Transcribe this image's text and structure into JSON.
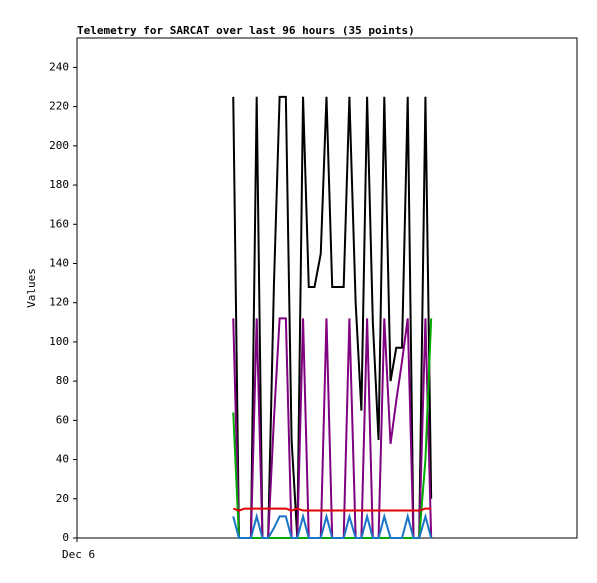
{
  "chart_data": {
    "type": "line",
    "title": "Telemetry for SARCAT over last 96 hours (35 points)",
    "y_label": "Values",
    "x": [
      30.0,
      31.1,
      32.2,
      33.4,
      34.5,
      35.6,
      36.7,
      37.8,
      38.9,
      40.1,
      41.2,
      42.3,
      43.4,
      44.5,
      45.6,
      46.8,
      47.9,
      49.0,
      50.1,
      51.2,
      52.3,
      53.5,
      54.6,
      55.7,
      56.8,
      57.9,
      59.0,
      60.2,
      61.3,
      62.4,
      63.5,
      64.6,
      65.7,
      66.9,
      68.0
    ],
    "xlim": [
      0,
      96
    ],
    "xticks": [
      {
        "value": 0,
        "label": "Dec 6"
      }
    ],
    "ylim": [
      0,
      255
    ],
    "yticks": [
      0,
      20,
      40,
      60,
      80,
      100,
      120,
      140,
      160,
      180,
      200,
      220,
      240
    ],
    "series": [
      {
        "color": "#000000",
        "values": [
          225,
          0,
          0,
          0,
          225,
          0,
          0,
          128,
          225,
          225,
          50,
          0,
          225,
          128,
          128,
          145,
          225,
          128,
          128,
          128,
          225,
          120,
          65,
          225,
          110,
          50,
          225,
          80,
          97,
          97,
          225,
          0,
          0,
          225,
          20
        ]
      },
      {
        "color": "#800080",
        "values": [
          112,
          0,
          0,
          0,
          112,
          0,
          0,
          60,
          112,
          112,
          0,
          0,
          112,
          0,
          0,
          0,
          112,
          0,
          0,
          0,
          112,
          0,
          0,
          112,
          0,
          0,
          112,
          48,
          70,
          90,
          112,
          0,
          0,
          112,
          0
        ]
      },
      {
        "color": "#00aa00",
        "values": [
          64,
          0,
          0,
          0,
          0,
          0,
          0,
          0,
          0,
          0,
          0,
          0,
          0,
          0,
          0,
          0,
          0,
          0,
          0,
          0,
          0,
          0,
          0,
          0,
          0,
          0,
          0,
          0,
          0,
          0,
          0,
          0,
          0,
          40,
          112
        ]
      },
      {
        "color": "#e00000",
        "values": [
          15,
          14,
          15,
          15,
          15,
          15,
          15,
          15,
          15,
          15,
          14,
          15,
          14,
          14,
          14,
          14,
          14,
          14,
          14,
          14,
          14,
          14,
          14,
          14,
          14,
          14,
          14,
          14,
          14,
          14,
          14,
          14,
          14,
          15,
          15
        ]
      },
      {
        "color": "#1a75c8",
        "values": [
          11,
          0,
          0,
          0,
          11,
          0,
          0,
          5,
          11,
          11,
          0,
          0,
          11,
          0,
          0,
          0,
          11,
          0,
          0,
          0,
          11,
          0,
          0,
          11,
          0,
          0,
          11,
          0,
          0,
          0,
          11,
          0,
          0,
          11,
          0
        ]
      }
    ]
  }
}
